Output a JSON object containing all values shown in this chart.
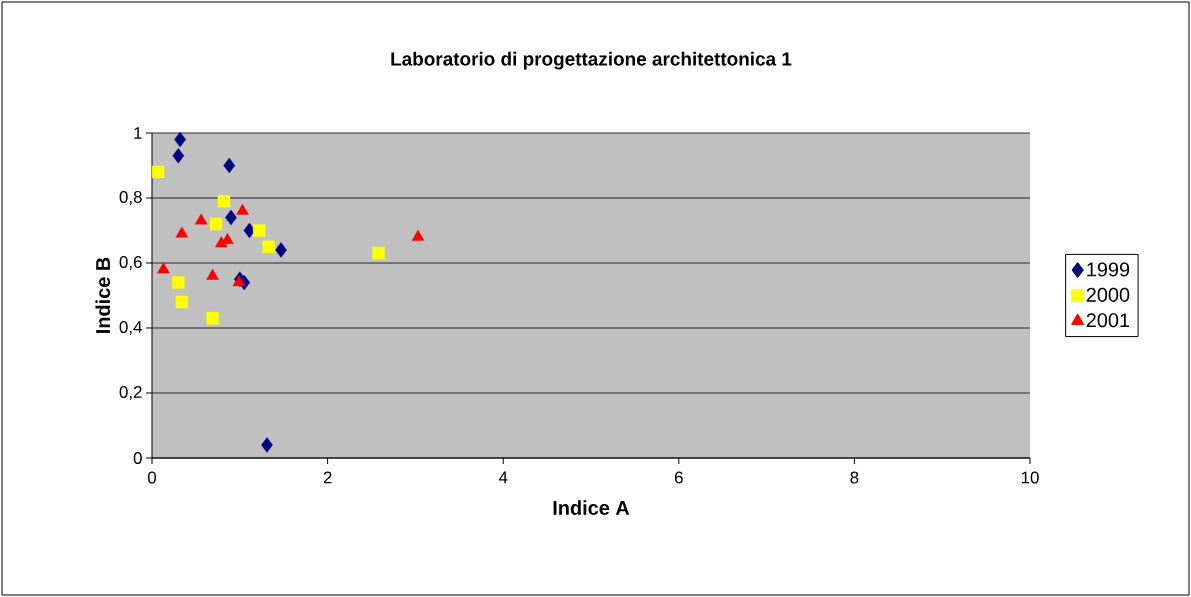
{
  "chart_data": {
    "type": "scatter",
    "title": "Laboratorio di progettazione architettonica 1",
    "xlabel": "Indice A",
    "ylabel": "Indice B",
    "xlim": [
      0,
      10
    ],
    "ylim": [
      0,
      1
    ],
    "xticks": [
      0,
      2,
      4,
      6,
      8,
      10
    ],
    "yticks": [
      0,
      {
        "value": 0.2,
        "label": "0,2"
      },
      {
        "value": 0.4,
        "label": "0,4"
      },
      {
        "value": 0.6,
        "label": "0,6"
      },
      {
        "value": 0.8,
        "label": "0,8"
      },
      1
    ],
    "grid": "y",
    "legend": "right",
    "series": [
      {
        "name": "1999",
        "color": "#000080",
        "marker": "diamond",
        "x": [
          0.32,
          0.3,
          0.88,
          0.9,
          1.11,
          1.47,
          1.0,
          1.05,
          1.31
        ],
        "values": [
          0.98,
          0.93,
          0.9,
          0.74,
          0.7,
          0.64,
          0.55,
          0.54,
          0.04
        ]
      },
      {
        "name": "2000",
        "color": "#ffff00",
        "marker": "square",
        "x": [
          0.07,
          0.82,
          0.73,
          1.22,
          1.33,
          2.58,
          0.3,
          0.34,
          0.69
        ],
        "values": [
          0.88,
          0.79,
          0.72,
          0.7,
          0.65,
          0.63,
          0.54,
          0.48,
          0.43
        ]
      },
      {
        "name": "2001",
        "color": "#ff0000",
        "marker": "triangle",
        "x": [
          1.03,
          0.56,
          0.34,
          0.79,
          0.86,
          3.03,
          0.13,
          0.69,
          0.99
        ],
        "values": [
          0.76,
          0.73,
          0.69,
          0.66,
          0.67,
          0.68,
          0.58,
          0.56,
          0.54
        ]
      }
    ]
  }
}
